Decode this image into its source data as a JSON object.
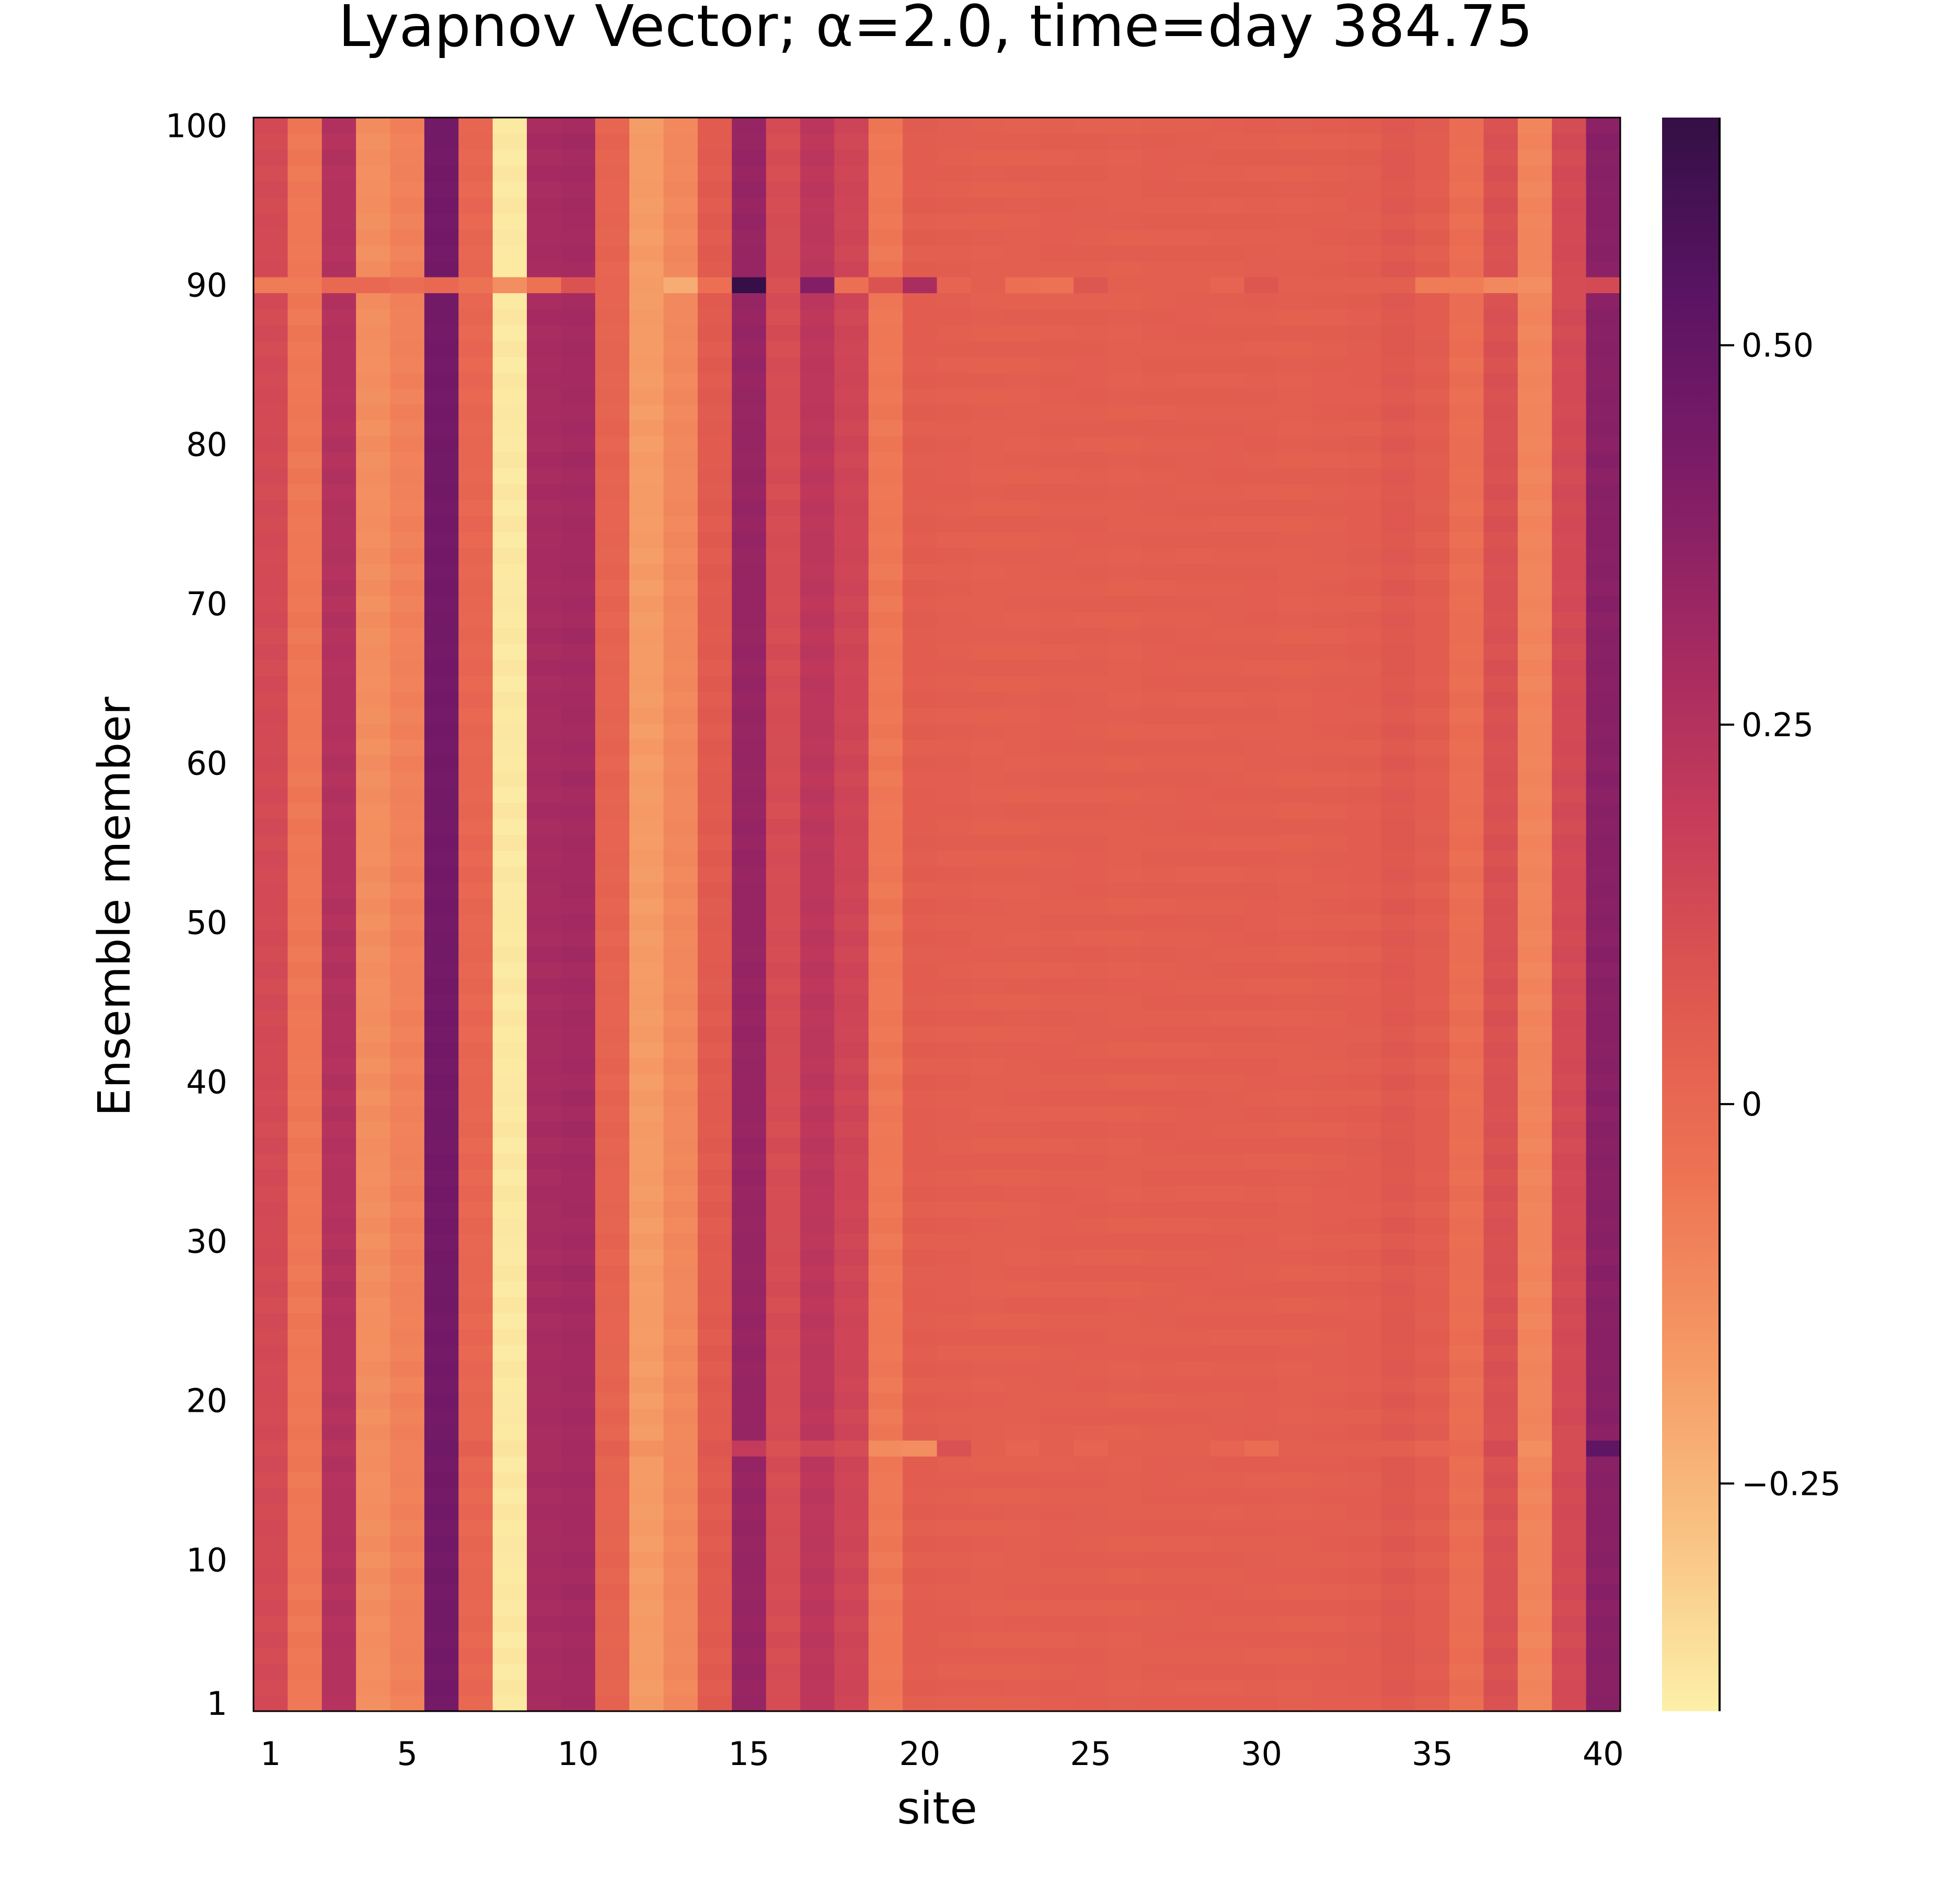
{
  "chart_data": {
    "type": "heatmap",
    "title": "Lyapnov Vector; α=2.0, time=day 384.75",
    "xlabel": "site",
    "ylabel": "Ensemble member",
    "x": {
      "range": [
        1,
        40
      ],
      "ticks": [
        1,
        5,
        10,
        15,
        20,
        25,
        30,
        35,
        40
      ],
      "tick_labels": [
        "1",
        "5",
        "10",
        "15",
        "20",
        "25",
        "30",
        "35",
        "40"
      ]
    },
    "y": {
      "range": [
        1,
        100
      ],
      "ticks": [
        1,
        10,
        20,
        30,
        40,
        50,
        60,
        70,
        80,
        90,
        100
      ],
      "tick_labels": [
        "1",
        "10",
        "20",
        "30",
        "40",
        "50",
        "60",
        "70",
        "80",
        "90",
        "100"
      ]
    },
    "colorbar": {
      "colormap": "magma (reversed)",
      "range": [
        -0.4,
        0.65
      ],
      "ticks": [
        -0.25,
        0,
        0.25,
        0.5
      ],
      "tick_labels": [
        "−0.25",
        "0",
        "0.25",
        "0.50"
      ],
      "stops": [
        "#fcf0a8",
        "#f9c283",
        "#f59a65",
        "#ee7454",
        "#e0594f",
        "#c83d5a",
        "#a42a61",
        "#7d1c67",
        "#5a1463",
        "#340f45"
      ]
    },
    "site_values": [
      0.13,
      -0.06,
      0.25,
      -0.13,
      -0.09,
      0.45,
      0.01,
      -0.38,
      0.29,
      0.3,
      0.02,
      -0.17,
      -0.11,
      0.06,
      0.34,
      0.12,
      0.22,
      0.15,
      -0.06,
      0.05,
      0.045,
      0.04,
      0.04,
      0.045,
      0.045,
      0.04,
      0.045,
      0.045,
      0.045,
      0.045,
      0.04,
      0.045,
      0.05,
      0.07,
      0.05,
      -0.02,
      0.1,
      -0.1,
      0.13,
      0.38
    ],
    "member_90_values": [
      -0.07,
      -0.07,
      0.0,
      0.0,
      -0.02,
      0.0,
      -0.04,
      -0.13,
      -0.04,
      0.09,
      0.02,
      -0.17,
      -0.22,
      -0.03,
      0.64,
      0.1,
      0.4,
      -0.03,
      0.09,
      0.28,
      0.02,
      0.04,
      -0.03,
      -0.04,
      0.08,
      0.04,
      0.04,
      0.04,
      0.02,
      0.08,
      0.04,
      0.04,
      0.04,
      0.04,
      -0.07,
      -0.07,
      -0.11,
      -0.13,
      0.12,
      0.13
    ],
    "member_17_values": [
      0.12,
      -0.06,
      0.24,
      -0.13,
      -0.09,
      0.46,
      0.04,
      -0.37,
      0.28,
      0.3,
      0.04,
      -0.14,
      -0.11,
      0.08,
      0.2,
      0.1,
      0.15,
      0.12,
      -0.12,
      -0.13,
      0.1,
      0.04,
      0.02,
      0.04,
      0.02,
      0.04,
      0.04,
      0.04,
      0.02,
      -0.02,
      0.04,
      0.04,
      0.04,
      0.04,
      0.02,
      0.0,
      0.13,
      -0.13,
      0.12,
      0.52
    ],
    "grid": false,
    "legend": "none (colorbar on right)"
  }
}
